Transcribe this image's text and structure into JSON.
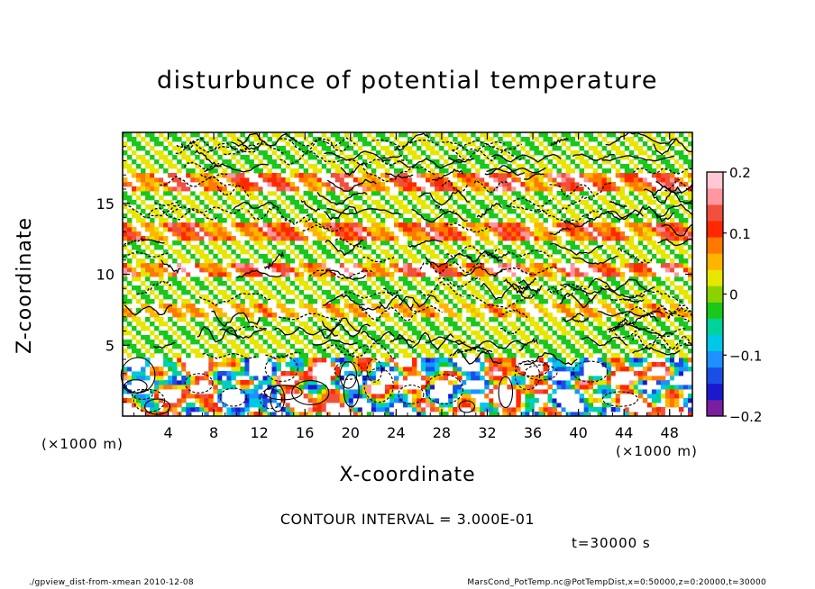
{
  "chart_data": {
    "type": "heatmap",
    "title": "disturbunce of potential temperature",
    "xlabel": "X-coordinate",
    "ylabel": "Z-coordinate",
    "x_unit_left": "(×1000 m)",
    "x_unit_right": "(×1000 m)",
    "x_ticks": [
      4,
      8,
      12,
      16,
      20,
      24,
      28,
      32,
      36,
      40,
      44,
      48
    ],
    "y_ticks": [
      5,
      10,
      15
    ],
    "xlim": [
      0,
      50
    ],
    "ylim": [
      0,
      20
    ],
    "colorbar": {
      "ticks": [
        0.2,
        0.1,
        0,
        -0.1,
        -0.2
      ],
      "labels": [
        "0.2",
        "0.1",
        "0",
        "−0.1",
        "−0.2"
      ],
      "range": [
        -0.2,
        0.2
      ],
      "colors": [
        "#7a1fa0",
        "#1a1acc",
        "#1a4fe6",
        "#1e90ff",
        "#00c8e6",
        "#00d29b",
        "#19c819",
        "#8cd200",
        "#e6e600",
        "#ffb400",
        "#ff7800",
        "#ff2800",
        "#f0503c",
        "#ff96a0",
        "#ffc8d2"
      ]
    },
    "contour_interval": "CONTOUR INTERVAL = 3.000E-01",
    "time": "t=30000 s"
  },
  "footer": {
    "left": "./gpview_dist-from-xmean  2010-12-08",
    "right": "MarsCond_PotTemp.nc@PotTempDist,x=0:50000,z=0:20000,t=30000"
  }
}
